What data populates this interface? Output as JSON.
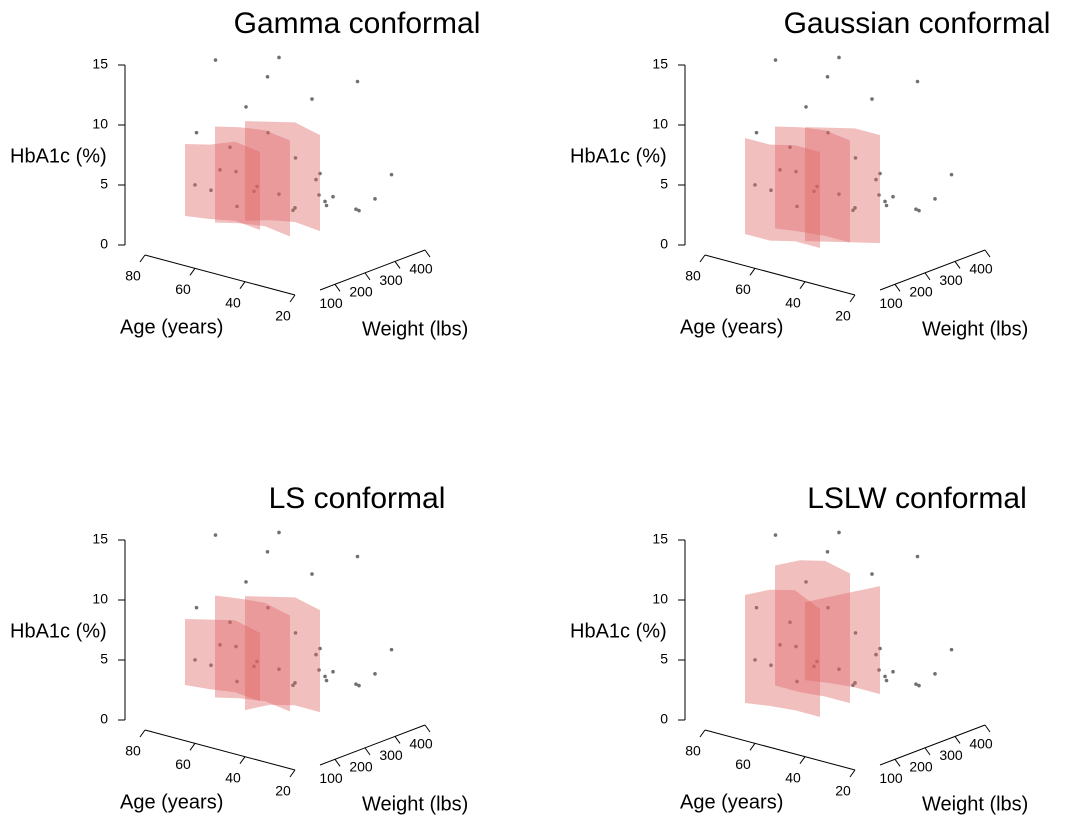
{
  "chart_data": [
    {
      "type": "scatter3d",
      "title": "Gamma conformal",
      "zlabel": "HbA1c (%)",
      "xlabel": "Age (years)",
      "ylabel": "Weight (lbs)",
      "xlim": [
        20,
        80
      ],
      "ylim": [
        50,
        400
      ],
      "zlim": [
        0,
        15
      ],
      "xticks": [
        80,
        60,
        40,
        20
      ],
      "yticks": [
        100,
        200,
        300,
        400
      ],
      "zticks": [
        0,
        5,
        10,
        15
      ],
      "point_color": "#707070",
      "band_color": "#e06666",
      "age": [
        72,
        75,
        68,
        65,
        60,
        58,
        55,
        52,
        50,
        48,
        45,
        42,
        40,
        38,
        36,
        35,
        32,
        30,
        28,
        26,
        25,
        24,
        22,
        21,
        62,
        54,
        46,
        34,
        70,
        44
      ],
      "weight": [
        150,
        180,
        200,
        160,
        220,
        170,
        250,
        190,
        210,
        230,
        260,
        180,
        300,
        200,
        240,
        280,
        220,
        260,
        320,
        200,
        300,
        350,
        280,
        380,
        120,
        140,
        130,
        160,
        250,
        330
      ],
      "hba1c": [
        4.5,
        8.4,
        5.5,
        15.2,
        11,
        6.2,
        13.5,
        5.1,
        9.5,
        4.3,
        7.2,
        16.5,
        5.8,
        4.0,
        12.8,
        3.6,
        6.5,
        4.8,
        3.3,
        5.2,
        14.3,
        4.1,
        3.9,
        6.0,
        4.9,
        3.8,
        5.6,
        4.4,
        6.8,
        3.5
      ],
      "bands": [
        {
          "weight": 100,
          "age": [
            70,
            60,
            50,
            40
          ],
          "lower": [
            2.5,
            2.8,
            3.2,
            3.0
          ],
          "upper": [
            8.5,
            9.0,
            9.8,
            9.5
          ]
        },
        {
          "weight": 200,
          "age": [
            70,
            60,
            50,
            40
          ],
          "lower": [
            1.0,
            1.5,
            1.8,
            1.5
          ],
          "upper": [
            9.0,
            9.5,
            9.8,
            9.5
          ]
        },
        {
          "weight": 300,
          "age": [
            70,
            60,
            50,
            40
          ],
          "lower": [
            0.2,
            0.8,
            1.2,
            1.0
          ],
          "upper": [
            8.5,
            9.0,
            9.5,
            9.0
          ]
        }
      ]
    },
    {
      "type": "scatter3d",
      "title": "Gaussian conformal",
      "zlabel": "HbA1c (%)",
      "xlabel": "Age (years)",
      "ylabel": "Weight (lbs)",
      "xlim": [
        20,
        80
      ],
      "ylim": [
        50,
        400
      ],
      "zlim": [
        0,
        15
      ],
      "xticks": [
        80,
        60,
        40,
        20
      ],
      "yticks": [
        100,
        200,
        300,
        400
      ],
      "zticks": [
        0,
        5,
        10,
        15
      ],
      "point_color": "#707070",
      "band_color": "#e06666",
      "age": [
        72,
        75,
        68,
        65,
        60,
        58,
        55,
        52,
        50,
        48,
        45,
        42,
        40,
        38,
        36,
        35,
        32,
        30,
        28,
        26,
        25,
        24,
        22,
        21,
        62,
        54,
        46,
        34,
        70,
        44
      ],
      "weight": [
        150,
        180,
        200,
        160,
        220,
        170,
        250,
        190,
        210,
        230,
        260,
        180,
        300,
        200,
        240,
        280,
        220,
        260,
        320,
        200,
        300,
        350,
        280,
        380,
        120,
        140,
        130,
        160,
        250,
        330
      ],
      "hba1c": [
        4.5,
        8.4,
        5.5,
        15.2,
        11,
        6.2,
        13.5,
        5.1,
        9.5,
        4.3,
        7.2,
        16.5,
        5.8,
        4.0,
        12.8,
        3.6,
        6.5,
        4.8,
        3.3,
        5.2,
        14.3,
        4.1,
        3.9,
        6.0,
        4.9,
        3.8,
        5.6,
        4.4,
        6.8,
        3.5
      ],
      "bands": [
        {
          "weight": 100,
          "age": [
            70,
            60,
            50,
            40
          ],
          "lower": [
            1.0,
            1.0,
            1.5,
            1.5
          ],
          "upper": [
            9.0,
            9.0,
            9.5,
            9.5
          ]
        },
        {
          "weight": 200,
          "age": [
            70,
            60,
            50,
            40
          ],
          "lower": [
            0.5,
            0.8,
            1.0,
            1.0
          ],
          "upper": [
            9.0,
            9.5,
            9.8,
            9.5
          ]
        },
        {
          "weight": 300,
          "age": [
            70,
            60,
            50,
            40
          ],
          "lower": [
            -1.5,
            -1.0,
            -0.5,
            0
          ],
          "upper": [
            8.0,
            8.5,
            9.0,
            9.0
          ]
        }
      ]
    },
    {
      "type": "scatter3d",
      "title": "LS conformal",
      "zlabel": "HbA1c (%)",
      "xlabel": "Age (years)",
      "ylabel": "Weight (lbs)",
      "xlim": [
        20,
        80
      ],
      "ylim": [
        50,
        400
      ],
      "zlim": [
        0,
        15
      ],
      "xticks": [
        80,
        60,
        40,
        20
      ],
      "yticks": [
        100,
        200,
        300,
        400
      ],
      "zticks": [
        0,
        5,
        10,
        15
      ],
      "point_color": "#707070",
      "band_color": "#e06666",
      "age": [
        72,
        75,
        68,
        65,
        60,
        58,
        55,
        52,
        50,
        48,
        45,
        42,
        40,
        38,
        36,
        35,
        32,
        30,
        28,
        26,
        25,
        24,
        22,
        21,
        62,
        54,
        46,
        34,
        70,
        44
      ],
      "weight": [
        150,
        180,
        200,
        160,
        220,
        170,
        250,
        190,
        210,
        230,
        260,
        180,
        300,
        200,
        240,
        280,
        220,
        260,
        320,
        200,
        300,
        350,
        280,
        380,
        120,
        140,
        130,
        160,
        250,
        330
      ],
      "hba1c": [
        4.5,
        8.4,
        5.5,
        15.2,
        11,
        6.2,
        13.5,
        5.1,
        9.5,
        4.3,
        7.2,
        16.5,
        5.8,
        4.0,
        12.8,
        3.6,
        6.5,
        4.8,
        3.3,
        5.2,
        14.3,
        4.1,
        3.9,
        6.0,
        4.9,
        3.8,
        5.6,
        4.4,
        6.8,
        3.5
      ],
      "bands": [
        {
          "weight": 100,
          "age": [
            70,
            60,
            50,
            40
          ],
          "lower": [
            3.0,
            3.2,
            3.5,
            3.3
          ],
          "upper": [
            8.5,
            9.0,
            9.5,
            9.0
          ]
        },
        {
          "weight": 200,
          "age": [
            70,
            60,
            50,
            40
          ],
          "lower": [
            1.0,
            1.5,
            1.8,
            1.5
          ],
          "upper": [
            9.5,
            9.8,
            10.0,
            9.5
          ]
        },
        {
          "weight": 300,
          "age": [
            70,
            60,
            50,
            40
          ],
          "lower": [
            -1.0,
            0,
            0.5,
            0.5
          ],
          "upper": [
            8.5,
            9.0,
            9.5,
            9.0
          ]
        }
      ]
    },
    {
      "type": "scatter3d",
      "title": "LSLW conformal",
      "zlabel": "HbA1c (%)",
      "xlabel": "Age (years)",
      "ylabel": "Weight (lbs)",
      "xlim": [
        20,
        80
      ],
      "ylim": [
        50,
        400
      ],
      "zlim": [
        0,
        15
      ],
      "xticks": [
        80,
        60,
        40,
        20
      ],
      "yticks": [
        100,
        200,
        300,
        400
      ],
      "zticks": [
        0,
        5,
        10,
        15
      ],
      "point_color": "#707070",
      "band_color": "#e06666",
      "age": [
        72,
        75,
        68,
        65,
        60,
        58,
        55,
        52,
        50,
        48,
        45,
        42,
        40,
        38,
        36,
        35,
        32,
        30,
        28,
        26,
        25,
        24,
        22,
        21,
        62,
        54,
        46,
        34,
        70,
        44
      ],
      "weight": [
        150,
        180,
        200,
        160,
        220,
        170,
        250,
        190,
        210,
        230,
        260,
        180,
        300,
        200,
        240,
        280,
        220,
        260,
        320,
        200,
        300,
        350,
        280,
        380,
        120,
        140,
        130,
        160,
        250,
        330
      ],
      "hba1c": [
        4.5,
        8.4,
        5.5,
        15.2,
        11,
        6.2,
        13.5,
        5.1,
        9.5,
        4.3,
        7.2,
        16.5,
        5.8,
        4.0,
        12.8,
        3.6,
        6.5,
        4.8,
        3.3,
        5.2,
        14.3,
        4.1,
        3.9,
        6.0,
        4.9,
        3.8,
        5.6,
        4.4,
        6.8,
        3.5
      ],
      "bands": [
        {
          "weight": 100,
          "age": [
            70,
            60,
            50,
            40
          ],
          "lower": [
            1.5,
            1.8,
            2.0,
            2.0
          ],
          "upper": [
            10.5,
            11.5,
            12.0,
            11.0
          ]
        },
        {
          "weight": 200,
          "age": [
            70,
            60,
            50,
            40
          ],
          "lower": [
            2.0,
            2.0,
            2.2,
            2.2
          ],
          "upper": [
            12.0,
            13.0,
            13.5,
            13.0
          ]
        },
        {
          "weight": 300,
          "age": [
            70,
            60,
            50,
            40
          ],
          "lower": [
            1.5,
            1.8,
            2.0,
            2.0
          ],
          "upper": [
            8.0,
            9.0,
            10.0,
            11.0
          ]
        }
      ]
    }
  ]
}
